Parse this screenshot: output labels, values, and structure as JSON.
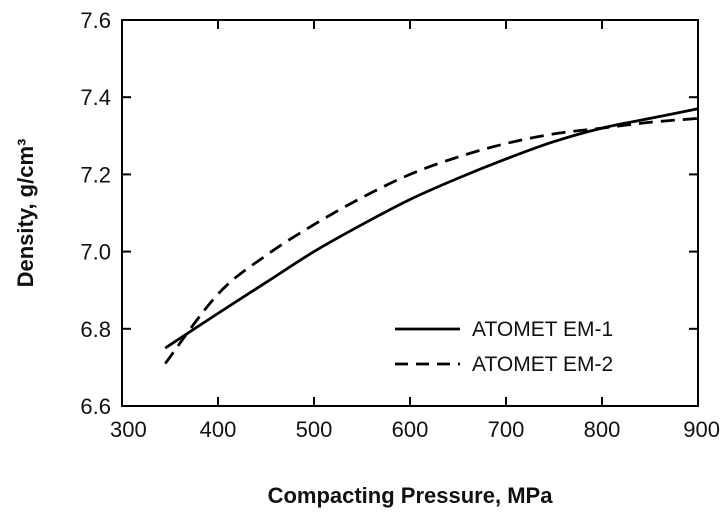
{
  "chart_data": {
    "type": "line",
    "xlabel": "Compacting Pressure, MPa",
    "ylabel": "Density, g/cm³",
    "xlim": [
      300,
      900
    ],
    "ylim": [
      6.6,
      7.6
    ],
    "xticks": [
      300,
      400,
      500,
      600,
      700,
      800,
      900
    ],
    "yticks": [
      6.6,
      6.8,
      7.0,
      7.2,
      7.4,
      7.6
    ],
    "xtick_labels": [
      "300",
      "400",
      "500",
      "600",
      "700",
      "800",
      "900"
    ],
    "ytick_labels": [
      "6.6",
      "6.8",
      "7.0",
      "7.2",
      "7.4",
      "7.6"
    ],
    "grid": false,
    "legend_position": "bottom-right",
    "series": [
      {
        "name": "ATOMET EM-1",
        "style": "solid",
        "color": "#000000",
        "x": [
          345,
          400,
          450,
          500,
          550,
          600,
          650,
          700,
          750,
          800,
          850,
          900
        ],
        "y": [
          6.75,
          6.84,
          6.92,
          7.0,
          7.07,
          7.135,
          7.19,
          7.24,
          7.285,
          7.32,
          7.345,
          7.37
        ]
      },
      {
        "name": "ATOMET EM-2",
        "style": "dashed",
        "color": "#000000",
        "x": [
          345,
          400,
          450,
          500,
          550,
          600,
          650,
          700,
          750,
          800,
          850,
          900
        ],
        "y": [
          6.71,
          6.89,
          6.99,
          7.07,
          7.14,
          7.2,
          7.245,
          7.28,
          7.305,
          7.32,
          7.335,
          7.345
        ]
      }
    ]
  }
}
